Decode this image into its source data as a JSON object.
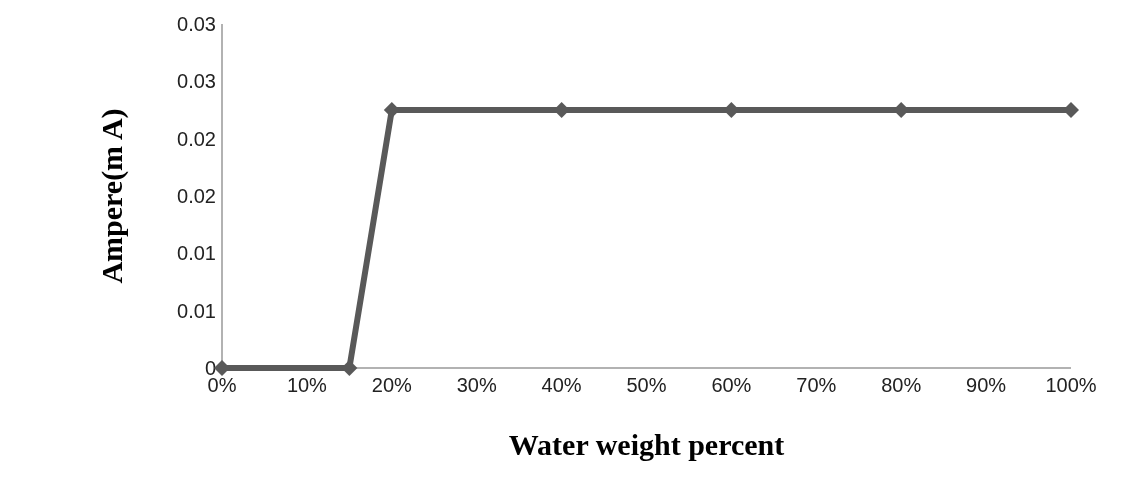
{
  "chart_data": {
    "type": "line",
    "xlabel": "Water weight percent",
    "ylabel": "Ampere(m A)",
    "x": [
      0,
      15,
      20,
      40,
      60,
      80,
      100
    ],
    "series": [
      {
        "color": "#595959",
        "values": [
          0,
          0,
          0.0225,
          0.0225,
          0.0225,
          0.0225,
          0.0225
        ]
      }
    ],
    "xlim": [
      0,
      100
    ],
    "xticks": [
      {
        "value": 0,
        "label": "0%"
      },
      {
        "value": 10,
        "label": "10%"
      },
      {
        "value": 20,
        "label": "20%"
      },
      {
        "value": 30,
        "label": "30%"
      },
      {
        "value": 40,
        "label": "40%"
      },
      {
        "value": 50,
        "label": "50%"
      },
      {
        "value": 60,
        "label": "60%"
      },
      {
        "value": 70,
        "label": "70%"
      },
      {
        "value": 80,
        "label": "80%"
      },
      {
        "value": 90,
        "label": "90%"
      },
      {
        "value": 100,
        "label": "100%"
      }
    ],
    "ylim": [
      0,
      0.03
    ],
    "yticks": [
      {
        "value": 0,
        "label": "0"
      },
      {
        "value": 0.005,
        "label": "0.01"
      },
      {
        "value": 0.01,
        "label": "0.01"
      },
      {
        "value": 0.015,
        "label": "0.02"
      },
      {
        "value": 0.02,
        "label": "0.02"
      },
      {
        "value": 0.025,
        "label": "0.03"
      },
      {
        "value": 0.03,
        "label": "0.03"
      }
    ],
    "grid": false,
    "marker": "diamond",
    "line_style": "solid"
  }
}
